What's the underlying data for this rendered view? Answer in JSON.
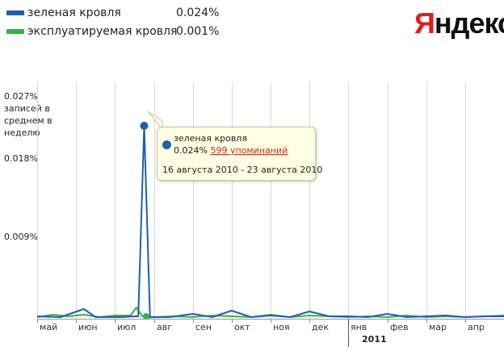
{
  "legend": [
    {
      "name": "зеленая кровля",
      "value": "0.024%",
      "color": "#1f5fab"
    },
    {
      "name": "эксплуатируемая кровля",
      "value": "0.001%",
      "color": "#3bb04a"
    }
  ],
  "logo": {
    "first": "Я",
    "rest": "ндекс"
  },
  "tooltip": {
    "series": "зеленая кровля",
    "value": "0.024%",
    "mentions": "599 упоминаний",
    "date_range": "16 августа 2010 - 23 августа 2010"
  },
  "chart_data": {
    "type": "line",
    "ylabel": "записей в среднем в неделю",
    "yticks": [
      "0.027%",
      "0.018%",
      "0.009%"
    ],
    "ylim": [
      0,
      0.027
    ],
    "xlim": [
      0,
      12
    ],
    "x_tick_labels": [
      "май",
      "июн",
      "июл",
      "авг",
      "сен",
      "окт",
      "ноя",
      "дек",
      "янв",
      "фев",
      "мар",
      "апр"
    ],
    "year_label": "2011",
    "grid": true,
    "series": [
      {
        "name": "зеленая кровля",
        "color": "#1f5fab",
        "x": [
          0,
          0.6,
          1.2,
          1.5,
          1.7,
          2.2,
          2.5,
          2.6,
          2.75,
          2.9,
          3.0,
          3.4,
          4.0,
          4.5,
          5.0,
          5.5,
          6.0,
          6.5,
          7.0,
          7.5,
          8.0,
          8.5,
          9.0,
          9.5,
          10.0,
          10.5,
          11.0,
          11.5,
          12.0
        ],
        "y": [
          0.0003,
          0.0002,
          0.0012,
          0.0002,
          0.0002,
          0.0002,
          0.0003,
          0.0003,
          0.024,
          0.0002,
          0.0002,
          0.0002,
          0.0006,
          0.0002,
          0.001,
          0.0002,
          0.0004,
          0.0002,
          0.0009,
          0.0003,
          0.0003,
          0.0002,
          0.0006,
          0.0002,
          0.0003,
          0.0004,
          0.0002,
          0.0003,
          0.0003
        ]
      },
      {
        "name": "эксплуатируемая кровля",
        "color": "#3bb04a",
        "x": [
          0,
          0.4,
          0.8,
          1.2,
          1.6,
          2.0,
          2.4,
          2.55,
          2.7,
          2.8,
          3.0,
          3.5,
          4.0,
          4.5,
          5.0,
          5.5,
          6.0,
          6.5,
          7.0,
          7.5,
          8.0,
          8.5,
          9.0,
          9.5,
          10.0,
          10.5,
          11.0,
          11.5,
          12.0
        ],
        "y": [
          0.0002,
          0.0005,
          0.0003,
          0.0005,
          0.0002,
          0.0004,
          0.0004,
          0.0014,
          0.0003,
          0.0001,
          0.0002,
          0.0003,
          0.0002,
          0.0004,
          0.0003,
          0.0002,
          0.0005,
          0.0002,
          0.0004,
          0.0003,
          0.0002,
          0.0003,
          0.0002,
          0.0004,
          0.0002,
          0.0003,
          0.0002,
          0.0003,
          0.0004
        ]
      }
    ],
    "highlight": {
      "series": 0,
      "x": 2.75,
      "y": 0.024
    }
  }
}
